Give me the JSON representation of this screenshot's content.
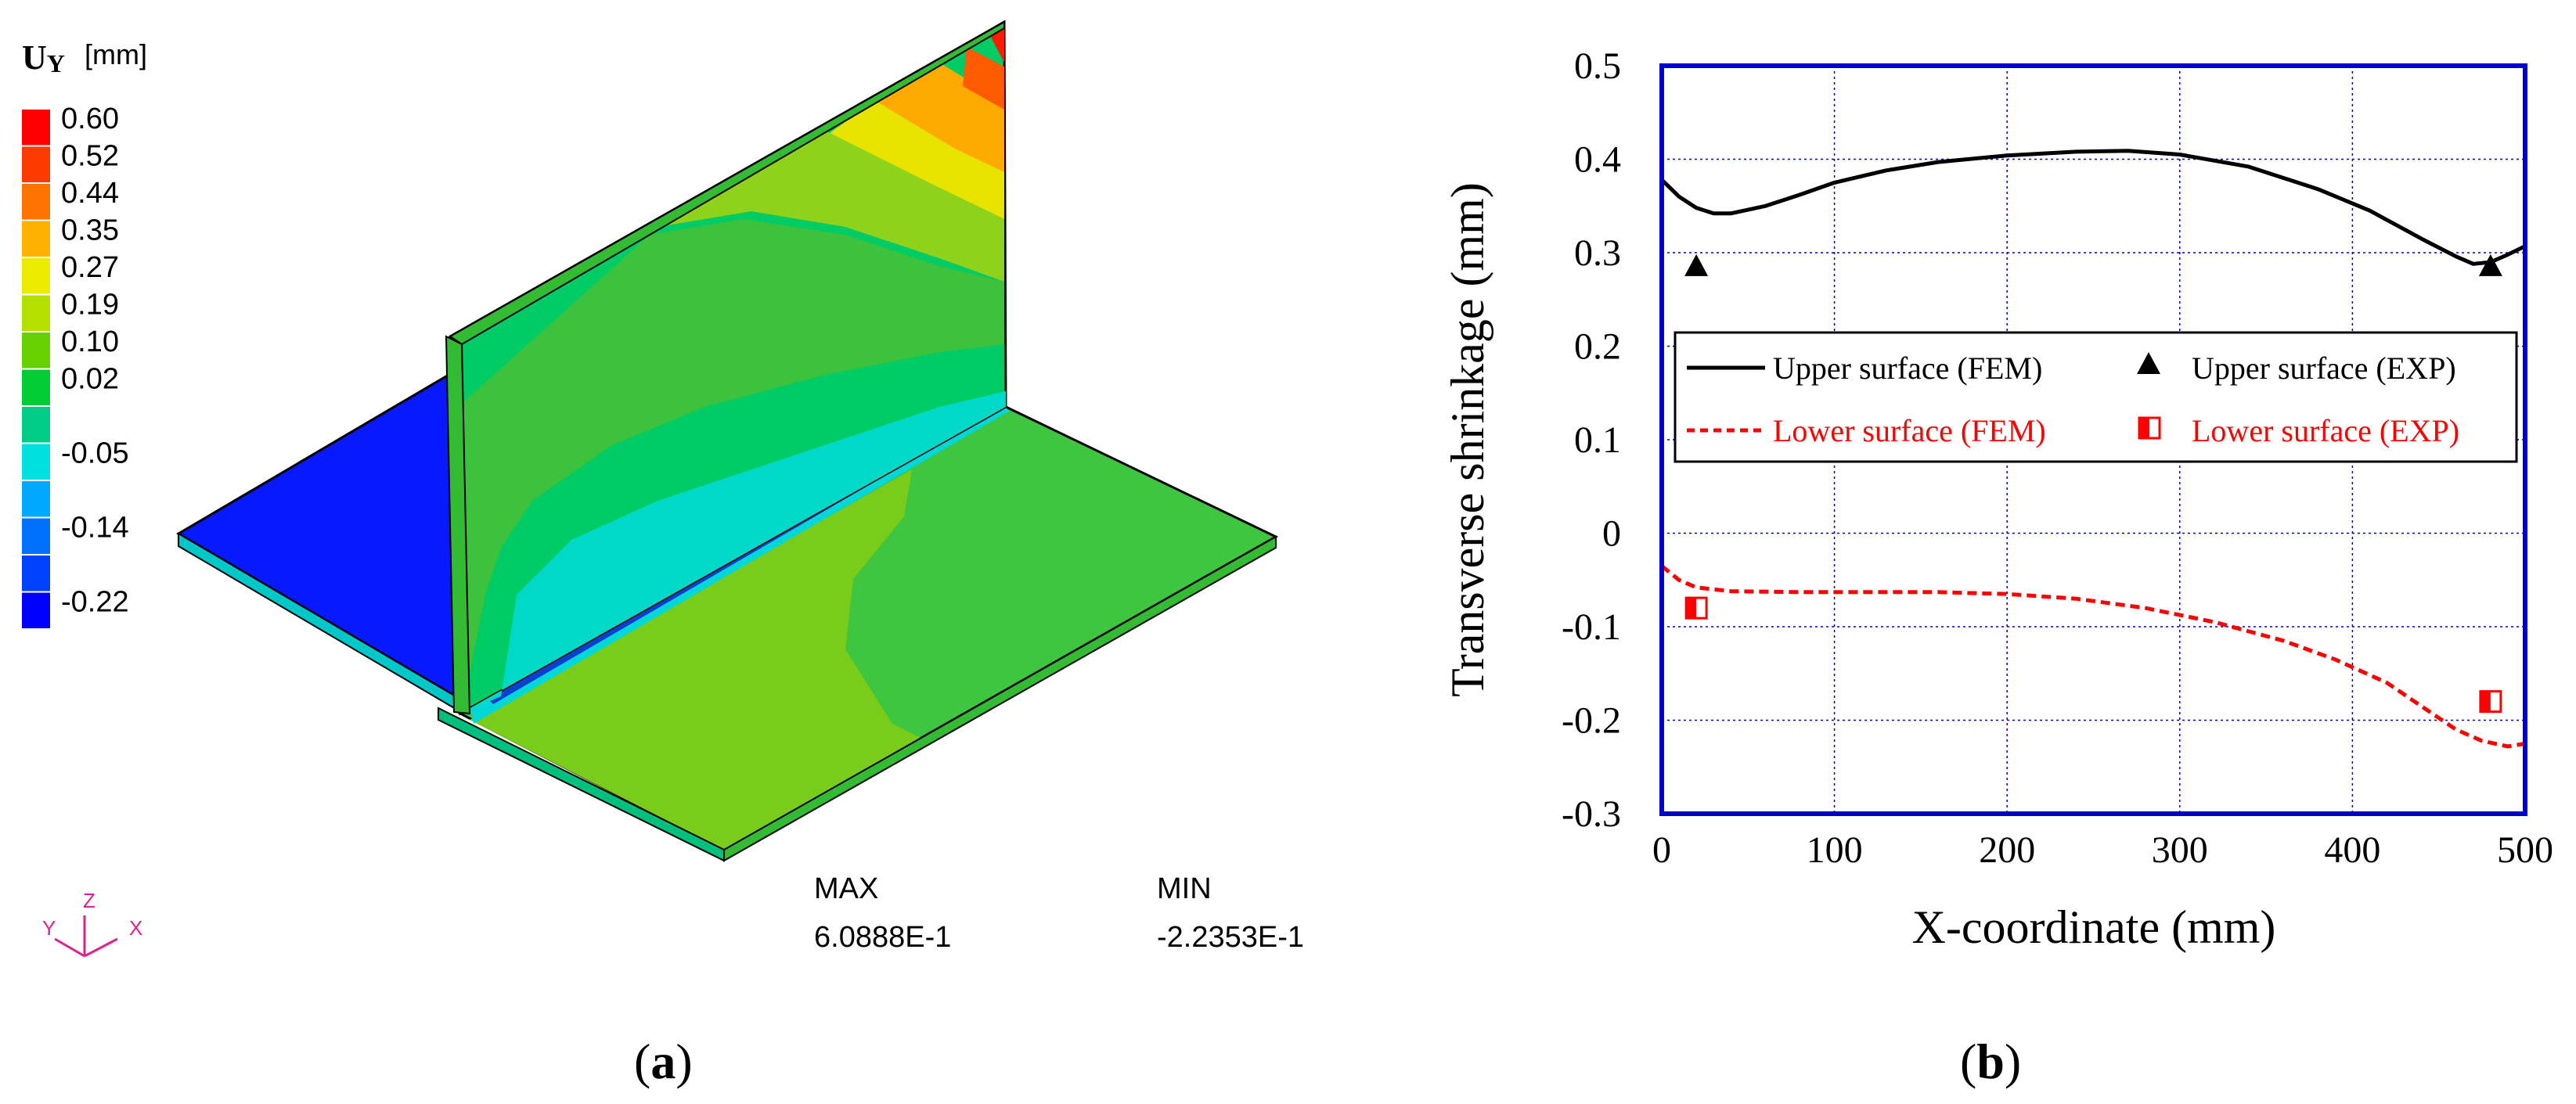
{
  "panel_a": {
    "legend_title_main": "U",
    "legend_title_sub": "Y",
    "legend_title_unit": "[mm]",
    "legend_levels": [
      {
        "label": "0.60",
        "color": "#ff0000"
      },
      {
        "label": "0.52",
        "color": "#ff3a00"
      },
      {
        "label": "0.44",
        "color": "#ff7400"
      },
      {
        "label": "0.35",
        "color": "#ffb000"
      },
      {
        "label": "0.27",
        "color": "#ecec00"
      },
      {
        "label": "0.19",
        "color": "#b4e000"
      },
      {
        "label": "0.10",
        "color": "#66d000"
      },
      {
        "label": "0.02",
        "color": "#00cc33"
      },
      {
        "label": "",
        "color": "#00cc88"
      },
      {
        "label": "-0.05",
        "color": "#00e0e0"
      },
      {
        "label": "",
        "color": "#00a8ff"
      },
      {
        "label": "-0.14",
        "color": "#0070ff"
      },
      {
        "label": "",
        "color": "#0040ff"
      },
      {
        "label": "-0.22",
        "color": "#0000ff"
      }
    ],
    "axes_triad": {
      "y": "Y",
      "z": "Z",
      "x": "X"
    },
    "max_label": "MAX",
    "max_value": "6.0888E-1",
    "min_label": "MIN",
    "min_value": "-2.2353E-1",
    "caption": "a"
  },
  "panel_b": {
    "caption": "b",
    "chart_data": {
      "type": "line",
      "title": "",
      "xlabel": "X-coordinate (mm)",
      "ylabel": "Transverse shrinkage (mm)",
      "xlim": [
        0,
        500
      ],
      "ylim": [
        -0.3,
        0.5
      ],
      "xticks": [
        0,
        100,
        200,
        300,
        400,
        500
      ],
      "xtick_labels": [
        "0",
        "100",
        "200",
        "300",
        "400",
        "500"
      ],
      "yticks": [
        -0.3,
        -0.2,
        -0.1,
        0,
        0.1,
        0.2,
        0.3,
        0.4,
        0.5
      ],
      "ytick_labels": [
        "-0.3",
        "-0.2",
        "-0.1",
        "0",
        "0.1",
        "0.2",
        "0.3",
        "0.4",
        "0.5"
      ],
      "grid": true,
      "legend_position": "middle",
      "series": [
        {
          "name": "Upper surface (FEM)",
          "style": "solid",
          "color": "#000000",
          "x": [
            0,
            10,
            20,
            30,
            40,
            60,
            80,
            100,
            130,
            160,
            200,
            240,
            270,
            300,
            340,
            380,
            410,
            440,
            460,
            470,
            480,
            490,
            500
          ],
          "y": [
            0.378,
            0.36,
            0.348,
            0.342,
            0.342,
            0.35,
            0.362,
            0.375,
            0.388,
            0.397,
            0.404,
            0.408,
            0.409,
            0.405,
            0.392,
            0.368,
            0.345,
            0.315,
            0.296,
            0.288,
            0.29,
            0.298,
            0.307
          ]
        },
        {
          "name": "Lower surface (FEM)",
          "style": "dashed",
          "color": "#ff0000",
          "x": [
            0,
            10,
            20,
            40,
            80,
            120,
            160,
            200,
            240,
            280,
            320,
            360,
            390,
            420,
            440,
            460,
            475,
            490,
            500
          ],
          "y": [
            -0.035,
            -0.05,
            -0.058,
            -0.062,
            -0.063,
            -0.063,
            -0.063,
            -0.065,
            -0.07,
            -0.08,
            -0.095,
            -0.115,
            -0.135,
            -0.16,
            -0.185,
            -0.21,
            -0.222,
            -0.228,
            -0.225
          ]
        },
        {
          "name": "Upper surface (EXP)",
          "style": "triangle",
          "color": "#000000",
          "x": [
            20,
            480
          ],
          "y": [
            0.285,
            0.285
          ]
        },
        {
          "name": "Lower surface (EXP)",
          "style": "half-filled-square",
          "color": "#ff0000",
          "x": [
            20,
            480
          ],
          "y": [
            -0.08,
            -0.18
          ]
        }
      ]
    }
  }
}
